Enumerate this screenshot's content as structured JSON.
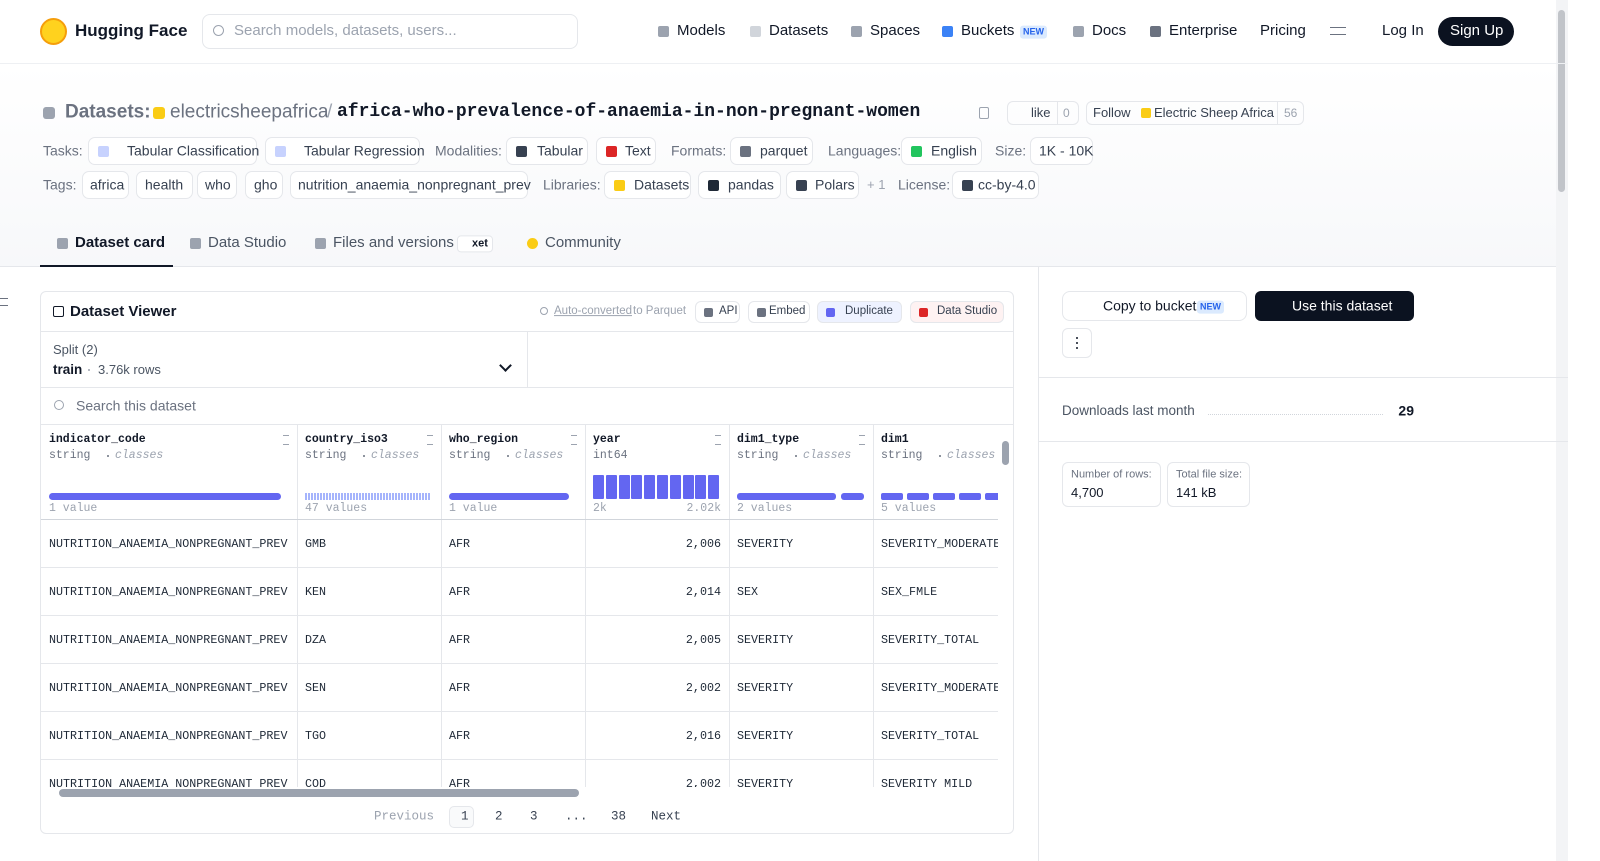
{
  "navbar": {
    "brand": "Hugging Face",
    "search_placeholder": "Search models, datasets, users...",
    "links": [
      "Models",
      "Datasets",
      "Spaces",
      "Buckets",
      "Docs",
      "Enterprise",
      "Pricing"
    ],
    "new_badge": "NEW",
    "login": "Log In",
    "signup": "Sign Up"
  },
  "header": {
    "section": "Datasets:",
    "owner": "electricsheepafrica",
    "separator": "/",
    "name": "africa-who-prevalence-of-anaemia-in-non-pregnant-women",
    "like_label": "like",
    "like_count": "0",
    "follow_label": "Follow",
    "follow_org": "Electric Sheep Africa",
    "follow_count": "56"
  },
  "metadata": {
    "tasks_label": "Tasks:",
    "tasks": [
      "Tabular Classification",
      "Tabular Regression"
    ],
    "modalities_label": "Modalities:",
    "modalities": [
      "Tabular",
      "Text"
    ],
    "formats_label": "Formats:",
    "formats": [
      "parquet"
    ],
    "languages_label": "Languages:",
    "languages": [
      "English"
    ],
    "size_label": "Size:",
    "size": "1K - 10K",
    "tags_label": "Tags:",
    "tags": [
      "africa",
      "health",
      "who",
      "gho",
      "nutrition_anaemia_nonpregnant_prev"
    ],
    "libraries_label": "Libraries:",
    "libraries": [
      "Datasets",
      "pandas",
      "Polars"
    ],
    "libraries_more": "+ 1",
    "license_label": "License:",
    "license": "cc-by-4.0"
  },
  "tabs": [
    {
      "label": "Dataset card"
    },
    {
      "label": "Data Studio"
    },
    {
      "label": "Files and versions",
      "badge": "xet"
    },
    {
      "label": "Community"
    }
  ],
  "viewer": {
    "title": "Dataset Viewer",
    "auto_converted": "Auto-converted",
    "to_parquet": "to Parquet",
    "actions": [
      "API",
      "Embed",
      "Duplicate",
      "Data Studio"
    ],
    "split_label": "Split (2)",
    "split": "train",
    "split_rows": "3.76k rows",
    "search_placeholder": "Search this dataset",
    "columns": [
      {
        "name": "indicator_code",
        "type": "string",
        "detail": "classes",
        "stats": "1 value"
      },
      {
        "name": "country_iso3",
        "type": "string",
        "detail": "classes",
        "stats": "47 values"
      },
      {
        "name": "who_region",
        "type": "string",
        "detail": "classes",
        "stats": "1 value"
      },
      {
        "name": "year",
        "type": "int64",
        "min": "2k",
        "max": "2.02k"
      },
      {
        "name": "dim1_type",
        "type": "string",
        "detail": "classes",
        "stats": "2 values"
      },
      {
        "name": "dim1",
        "type": "string",
        "detail": "classes",
        "stats": "5 values"
      }
    ],
    "rows": [
      [
        "NUTRITION_ANAEMIA_NONPREGNANT_PREV",
        "GMB",
        "AFR",
        "2,006",
        "SEVERITY",
        "SEVERITY_MODERATE"
      ],
      [
        "NUTRITION_ANAEMIA_NONPREGNANT_PREV",
        "KEN",
        "AFR",
        "2,014",
        "SEX",
        "SEX_FMLE"
      ],
      [
        "NUTRITION_ANAEMIA_NONPREGNANT_PREV",
        "DZA",
        "AFR",
        "2,005",
        "SEVERITY",
        "SEVERITY_TOTAL"
      ],
      [
        "NUTRITION_ANAEMIA_NONPREGNANT_PREV",
        "SEN",
        "AFR",
        "2,002",
        "SEVERITY",
        "SEVERITY_MODERATE"
      ],
      [
        "NUTRITION_ANAEMIA_NONPREGNANT_PREV",
        "TGO",
        "AFR",
        "2,016",
        "SEVERITY",
        "SEVERITY_TOTAL"
      ],
      [
        "NUTRITION_ANAEMIA_NONPREGNANT_PREV",
        "COD",
        "AFR",
        "2,002",
        "SEVERITY",
        "SEVERITY_MILD"
      ]
    ],
    "pagination": {
      "previous": "Previous",
      "pages": [
        "1",
        "2",
        "3",
        "...",
        "38"
      ],
      "next": "Next"
    }
  },
  "sidebar": {
    "copy_to_bucket": "Copy to bucket",
    "new_badge": "NEW",
    "use_dataset": "Use this dataset",
    "downloads_label": "Downloads last month",
    "downloads": "29",
    "rows_label": "Number of rows:",
    "rows": "4,700",
    "size_label": "Total file size:",
    "size": "141 kB"
  }
}
